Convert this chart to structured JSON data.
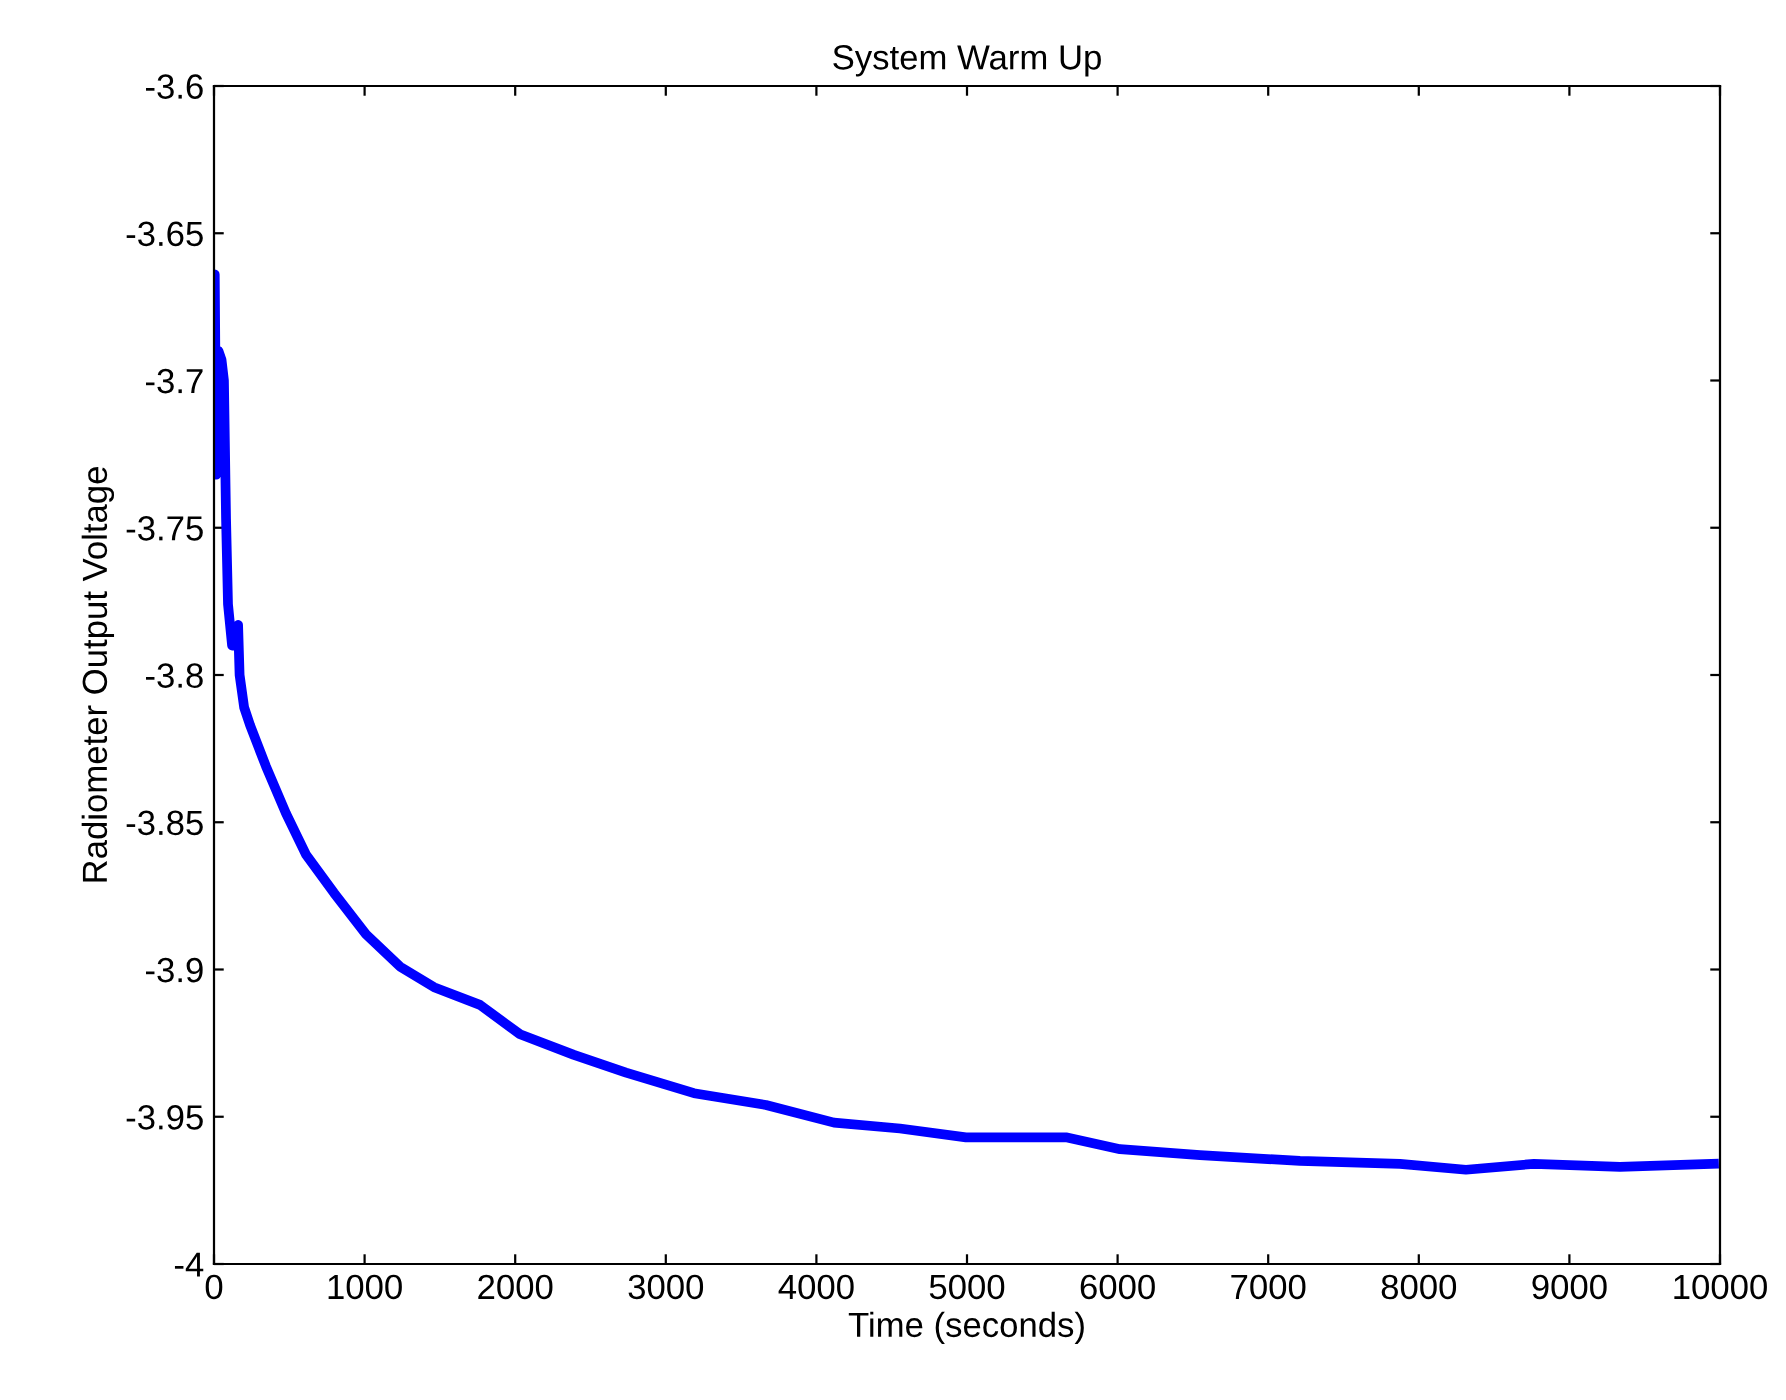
{
  "chart_data": {
    "type": "line",
    "title": "System Warm Up",
    "xlabel": "Time (seconds)",
    "ylabel": "Radiometer Output Voltage",
    "x": [
      0,
      5,
      15,
      30,
      50,
      66,
      80,
      93,
      120,
      160,
      170,
      200,
      239,
      345,
      478,
      611,
      797,
      1009,
      1235,
      1461,
      1766,
      2032,
      2390,
      2736,
      3187,
      3665,
      4117,
      4555,
      4993,
      5126,
      5657,
      6016,
      6547,
      7211,
      7875,
      8313,
      8765,
      9336,
      9960
    ],
    "series": [
      {
        "color": "#0000ff",
        "values": [
          -3.67,
          -3.664,
          -3.732,
          -3.69,
          -3.693,
          -3.7,
          -3.747,
          -3.776,
          -3.79,
          -3.783,
          -3.8,
          -3.811,
          -3.817,
          -3.831,
          -3.847,
          -3.861,
          -3.874,
          -3.888,
          -3.899,
          -3.906,
          -3.912,
          -3.922,
          -3.929,
          -3.935,
          -3.942,
          -3.946,
          -3.952,
          -3.954,
          -3.957,
          -3.957,
          -3.957,
          -3.961,
          -3.963,
          -3.965,
          -3.966,
          -3.968,
          -3.966,
          -3.967,
          -3.966
        ]
      }
    ],
    "xlim": [
      0,
      10000
    ],
    "xticks": [
      0,
      1000,
      2000,
      3000,
      4000,
      5000,
      6000,
      7000,
      8000,
      9000,
      10000
    ],
    "ylim": [
      -4,
      -3.6
    ],
    "yticks": [
      -4,
      -3.95,
      -3.9,
      -3.85,
      -3.8,
      -3.75,
      -3.7,
      -3.65,
      -3.6
    ],
    "grid": false,
    "legend": false,
    "marker": "none",
    "line_style": "solid"
  }
}
